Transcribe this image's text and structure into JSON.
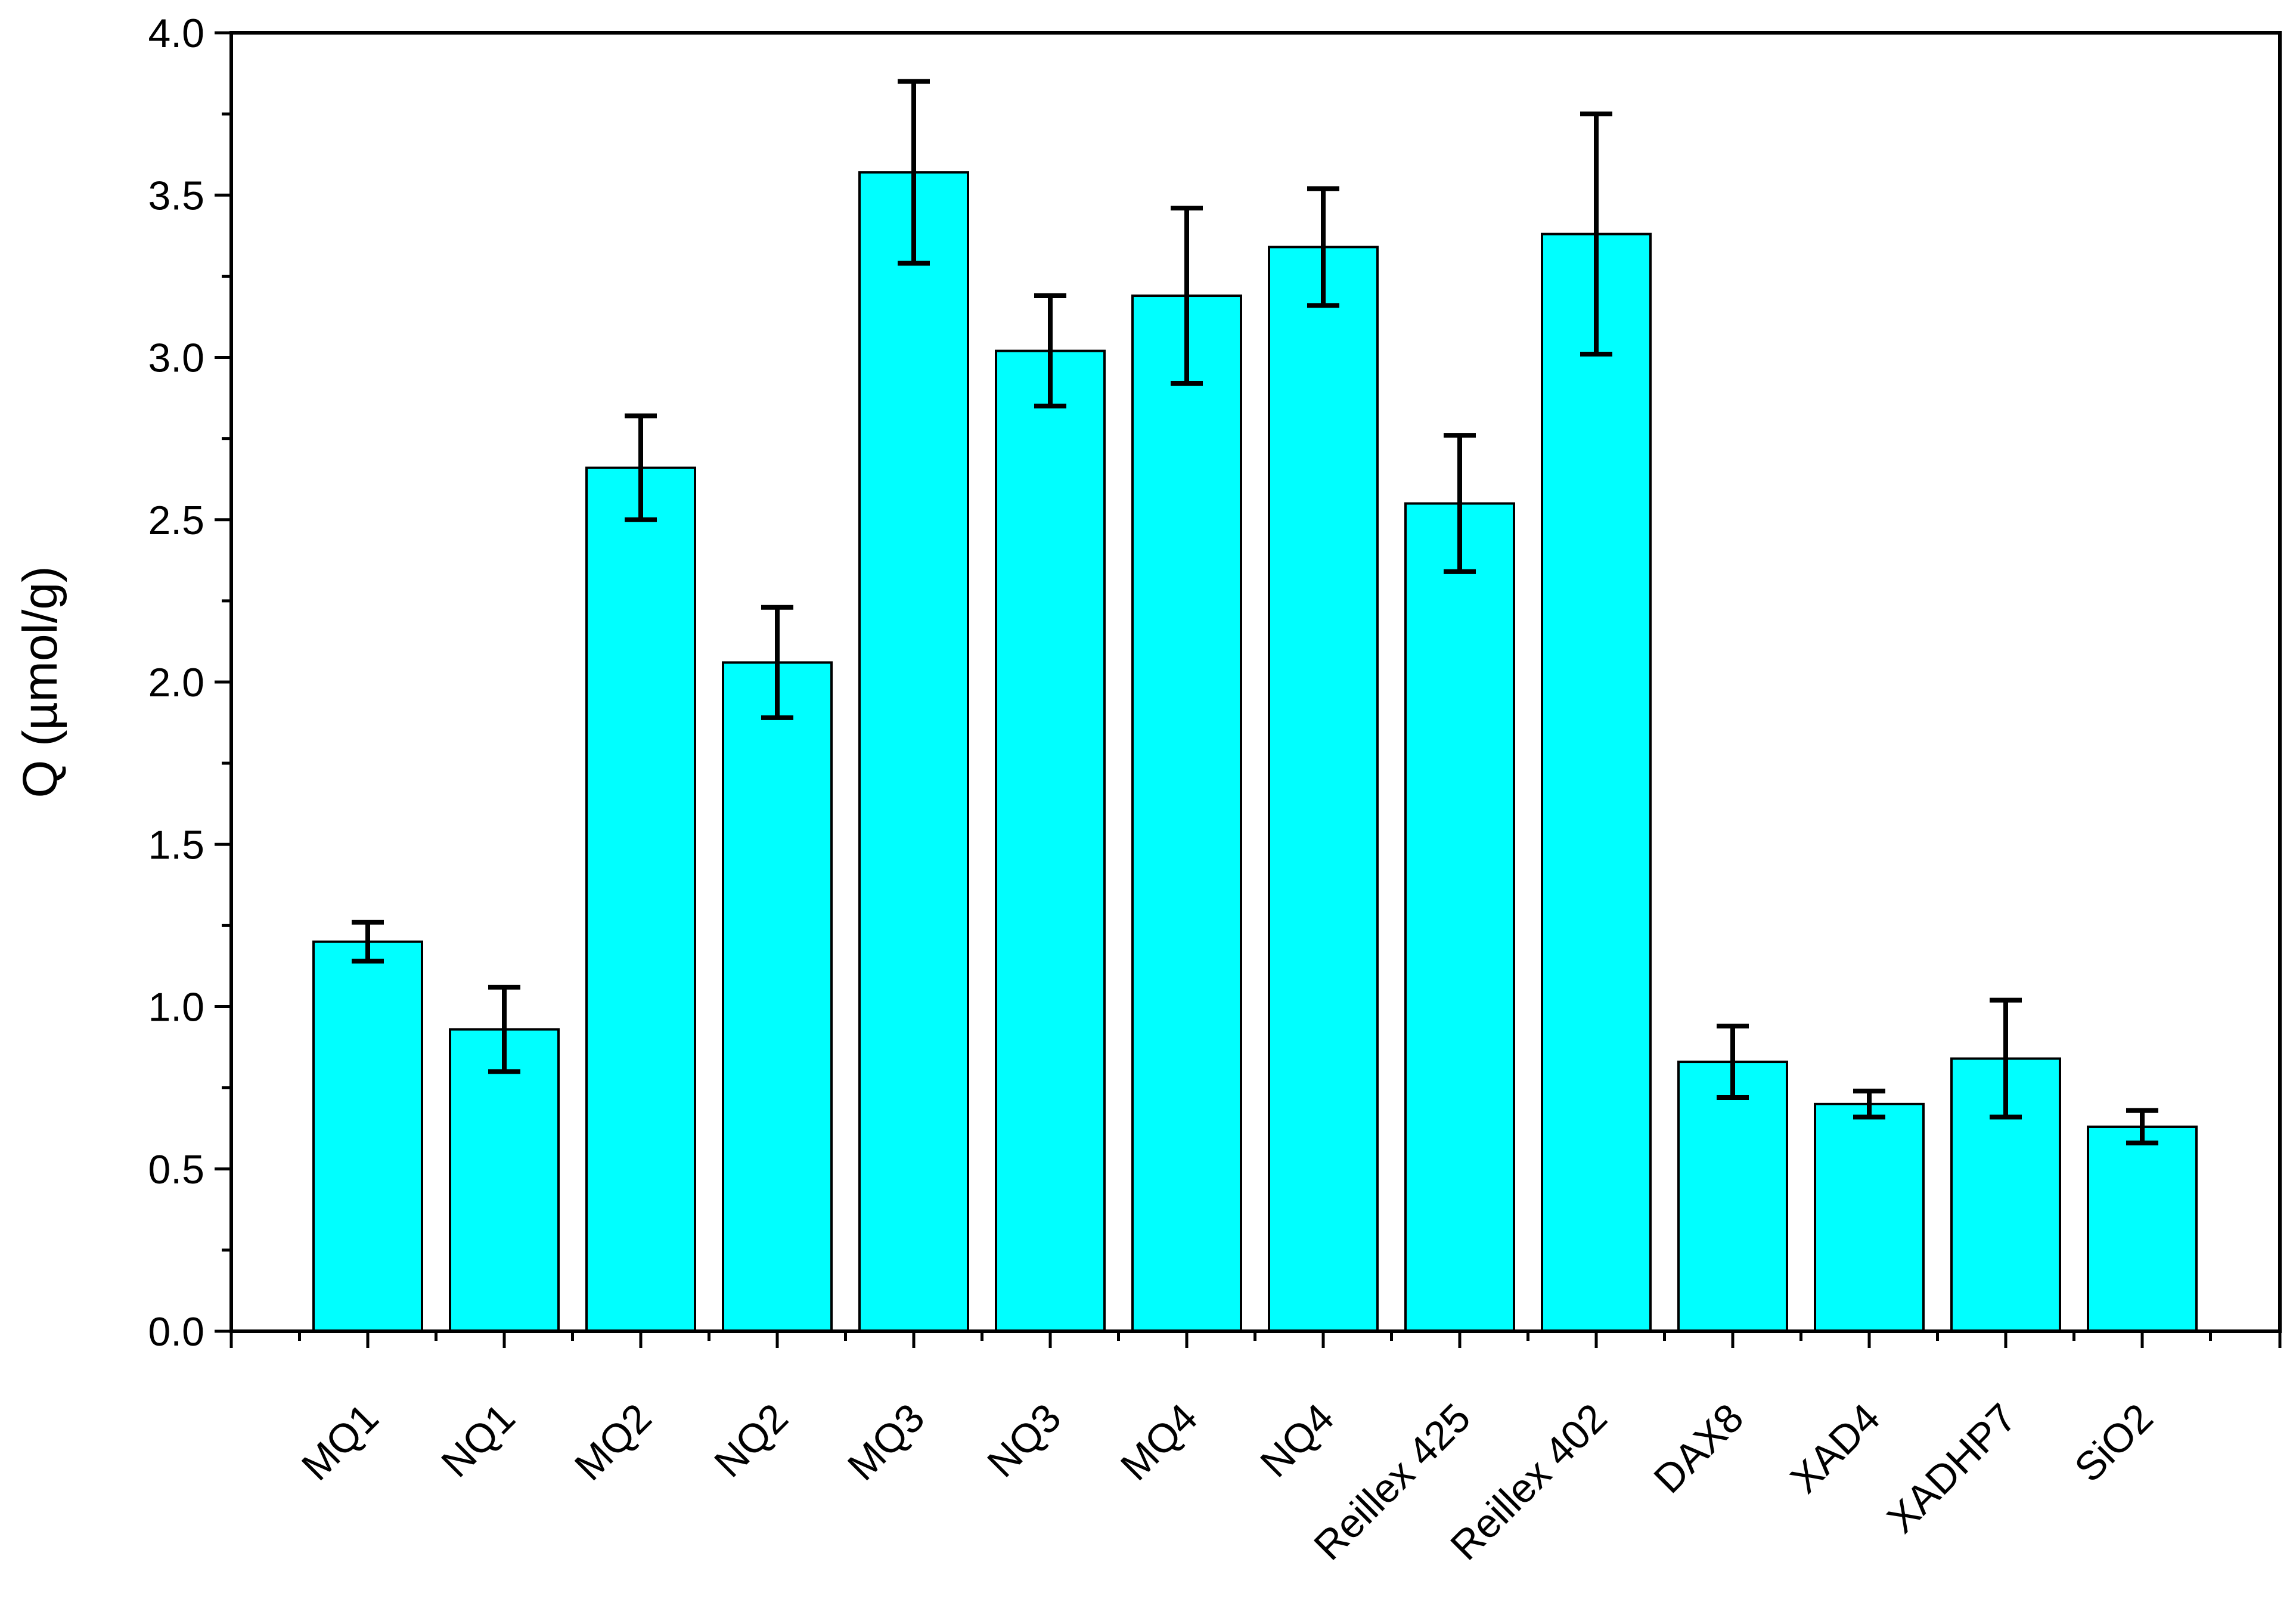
{
  "chart_data": {
    "type": "bar",
    "title": "",
    "xlabel": "",
    "ylabel": "Q (µmol/g)",
    "ylim": [
      0,
      4
    ],
    "yticks": [
      "0.0",
      "0.5",
      "1.0",
      "1.5",
      "2.0",
      "2.5",
      "3.0",
      "3.5",
      "4.0"
    ],
    "categories": [
      "MQ1",
      "NQ1",
      "MQ2",
      "NQ2",
      "MQ3",
      "NQ3",
      "MQ4",
      "NQ4",
      "Reillex 425",
      "Reillex 402",
      "DAX8",
      "XAD4",
      "XADHP7",
      "SiO2"
    ],
    "values": [
      1.2,
      0.93,
      2.66,
      2.06,
      3.57,
      3.02,
      3.19,
      3.34,
      2.55,
      3.38,
      0.83,
      0.7,
      0.84,
      0.63
    ],
    "errors": [
      0.06,
      0.13,
      0.16,
      0.17,
      0.28,
      0.17,
      0.27,
      0.18,
      0.21,
      0.37,
      0.11,
      0.04,
      0.18,
      0.05
    ],
    "colors": {
      "bar": "#00ffff",
      "edge": "#000000"
    }
  }
}
